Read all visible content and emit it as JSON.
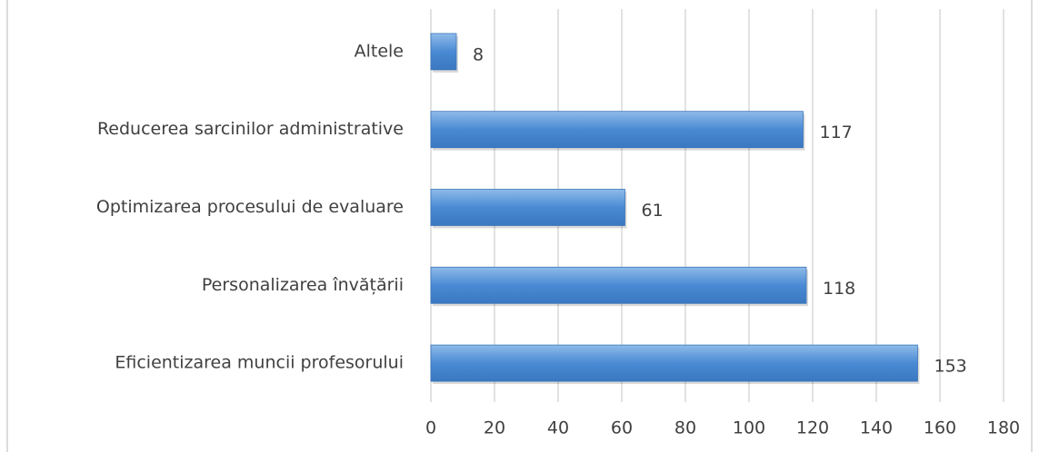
{
  "chart_data": {
    "type": "bar",
    "orientation": "horizontal",
    "categories": [
      "Altele",
      "Reducerea sarcinilor administrative",
      "Optimizarea procesului de evaluare",
      "Personalizarea învățării",
      "Eficientizarea muncii profesorului"
    ],
    "values": [
      8,
      117,
      61,
      118,
      153
    ],
    "color": "#4a8ad4",
    "xlim": [
      0,
      180
    ],
    "xticks": [
      0,
      20,
      40,
      60,
      80,
      100,
      120,
      140,
      160,
      180
    ],
    "grid": true
  }
}
